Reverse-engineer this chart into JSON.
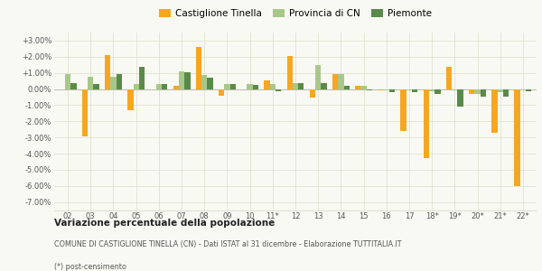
{
  "categories": [
    "02",
    "03",
    "04",
    "05",
    "06",
    "07",
    "08",
    "09",
    "10",
    "11*",
    "12",
    "13",
    "14",
    "15",
    "16",
    "17",
    "18*",
    "19*",
    "20*",
    "21*",
    "22*"
  ],
  "castiglione": [
    0.0,
    -2.95,
    2.1,
    -1.3,
    -0.05,
    0.2,
    2.6,
    -0.4,
    -0.05,
    0.55,
    2.05,
    -0.55,
    0.9,
    0.2,
    -0.1,
    -2.6,
    -4.3,
    1.4,
    -0.3,
    -2.7,
    -6.0
  ],
  "provincia": [
    0.95,
    0.75,
    0.75,
    0.3,
    0.3,
    1.1,
    0.85,
    0.3,
    0.3,
    0.3,
    0.35,
    1.5,
    0.9,
    0.2,
    -0.1,
    -0.1,
    -0.15,
    -0.1,
    -0.3,
    -0.2,
    -0.1
  ],
  "piemonte": [
    0.35,
    0.3,
    0.9,
    1.4,
    0.3,
    1.05,
    0.7,
    0.3,
    0.25,
    -0.15,
    0.35,
    0.35,
    0.2,
    -0.1,
    -0.2,
    -0.2,
    -0.3,
    -1.1,
    -0.5,
    -0.5,
    -0.15
  ],
  "castiglione_color": "#f5a623",
  "provincia_color": "#a8c88a",
  "piemonte_color": "#5a8a4a",
  "title_bold": "Variazione percentuale della popolazione",
  "subtitle": "COMUNE DI CASTIGLIONE TINELLA (CN) - Dati ISTAT al 31 dicembre - Elaborazione TUTTITALIA.IT",
  "footnote": "(*) post-censimento",
  "ylim": [
    -7.5,
    3.5
  ],
  "yticks": [
    -7.0,
    -6.0,
    -5.0,
    -4.0,
    -3.0,
    -2.0,
    -1.0,
    0.0,
    1.0,
    2.0,
    3.0
  ],
  "bg_color": "#f9f9f4",
  "grid_color": "#e0e0d0"
}
